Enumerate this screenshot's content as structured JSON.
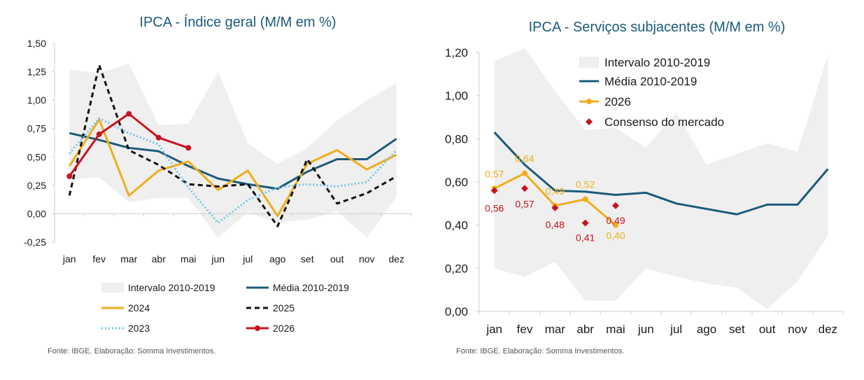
{
  "source": {
    "left": "Fonte: IBGE. Elaboração: Somma Investimentos.",
    "right": "Fonte: IBGE. Elaboração: Somma Investimentos."
  },
  "colors": {
    "band": "#efefef",
    "media": "#1b5a7a",
    "y2024": "#f0ad1c",
    "y2025": "#111111",
    "y2023": "#6ec6e6",
    "y2026": "#c8141e",
    "consenso": "#c8141e",
    "label2026": "#f0ad1c",
    "labelConsenso": "#c8141e"
  },
  "chart_data": [
    {
      "type": "line",
      "title": "IPCA - Índice geral (M/M em %)",
      "categories": [
        "jan",
        "fev",
        "mar",
        "abr",
        "mai",
        "jun",
        "jul",
        "ago",
        "set",
        "out",
        "nov",
        "dez"
      ],
      "ylim": [
        -0.25,
        1.5
      ],
      "yticks": [
        "-0,25",
        "0,00",
        "0,25",
        "0,50",
        "0,75",
        "1,00",
        "1,25",
        "1,50"
      ],
      "yticks_values": [
        -0.25,
        0,
        0.25,
        0.5,
        0.75,
        1.0,
        1.25,
        1.5
      ],
      "grid": false,
      "legend_position": "bottom",
      "band": {
        "name": "Intervalo 2010-2019",
        "upper": [
          1.27,
          1.24,
          1.32,
          0.78,
          0.79,
          1.25,
          0.62,
          0.44,
          0.58,
          0.82,
          1.0,
          1.15
        ],
        "lower": [
          0.3,
          0.32,
          0.1,
          0.14,
          0.14,
          -0.21,
          0.01,
          -0.08,
          -0.05,
          0.02,
          -0.21,
          0.15
        ]
      },
      "series": [
        {
          "name": "Média 2010-2019",
          "style": "solid-media",
          "values": [
            0.71,
            0.65,
            0.58,
            0.55,
            0.42,
            0.31,
            0.26,
            0.22,
            0.37,
            0.48,
            0.48,
            0.66
          ]
        },
        {
          "name": "2024",
          "style": "solid-2024",
          "values": [
            0.42,
            0.83,
            0.16,
            0.38,
            0.46,
            0.21,
            0.38,
            -0.02,
            0.44,
            0.56,
            0.39,
            0.52
          ]
        },
        {
          "name": "2025",
          "style": "dashed",
          "values": [
            0.16,
            1.31,
            0.56,
            0.43,
            0.26,
            0.24,
            0.26,
            -0.11,
            0.48,
            0.09,
            0.18,
            0.33
          ]
        },
        {
          "name": "2023",
          "style": "dotted",
          "values": [
            0.53,
            0.84,
            0.71,
            0.61,
            0.23,
            -0.08,
            0.12,
            0.23,
            0.26,
            0.24,
            0.28,
            0.56
          ]
        },
        {
          "name": "2026",
          "style": "solid-markers",
          "values": [
            0.33,
            0.7,
            0.88,
            0.67,
            0.58,
            null,
            null,
            null,
            null,
            null,
            null,
            null
          ]
        }
      ],
      "legend": [
        "Intervalo 2010-2019",
        "Média 2010-2019",
        "2024",
        "2025",
        "2023",
        "2026"
      ]
    },
    {
      "type": "line",
      "title": "IPCA - Serviços subjacentes (M/M em %)",
      "categories": [
        "jan",
        "fev",
        "mar",
        "abr",
        "mai",
        "jun",
        "jul",
        "ago",
        "set",
        "out",
        "nov",
        "dez"
      ],
      "ylim": [
        0,
        1.2
      ],
      "yticks": [
        "0,00",
        "0,20",
        "0,40",
        "0,60",
        "0,80",
        "1,00",
        "1,20"
      ],
      "yticks_values": [
        0,
        0.2,
        0.4,
        0.6,
        0.8,
        1.0,
        1.2
      ],
      "grid": false,
      "legend_position": "top-left",
      "band": {
        "name": "Intervalo 2010-2019",
        "upper": [
          1.16,
          1.22,
          1.02,
          0.84,
          0.85,
          0.76,
          0.92,
          0.68,
          0.73,
          0.78,
          0.74,
          1.19
        ],
        "lower": [
          0.2,
          0.16,
          0.23,
          0.05,
          0.05,
          0.2,
          0.16,
          0.13,
          0.11,
          0.01,
          0.14,
          0.35
        ]
      },
      "series": [
        {
          "name": "Média 2010-2019",
          "style": "solid-media",
          "values": [
            0.83,
            0.68,
            0.56,
            0.555,
            0.54,
            0.55,
            0.5,
            0.475,
            0.45,
            0.495,
            0.495,
            0.66
          ]
        },
        {
          "name": "2026",
          "style": "solid-markers-2026",
          "values": [
            0.57,
            0.64,
            0.49,
            0.52,
            0.4,
            null,
            null,
            null,
            null,
            null,
            null,
            null
          ],
          "labels": [
            "0,57",
            "0,64",
            "0,49",
            "0,52",
            "0,40"
          ]
        },
        {
          "name": "Consenso do mercado",
          "style": "diamonds",
          "values": [
            0.56,
            0.57,
            0.48,
            0.41,
            0.49,
            null,
            null,
            null,
            null,
            null,
            null,
            null
          ],
          "labels": [
            "0,56",
            "0,57",
            "0,48",
            "0,41",
            "0,49"
          ]
        }
      ],
      "legend": [
        "Intervalo 2010-2019",
        "Média 2010-2019",
        "2026",
        "Consenso do mercado"
      ]
    }
  ]
}
